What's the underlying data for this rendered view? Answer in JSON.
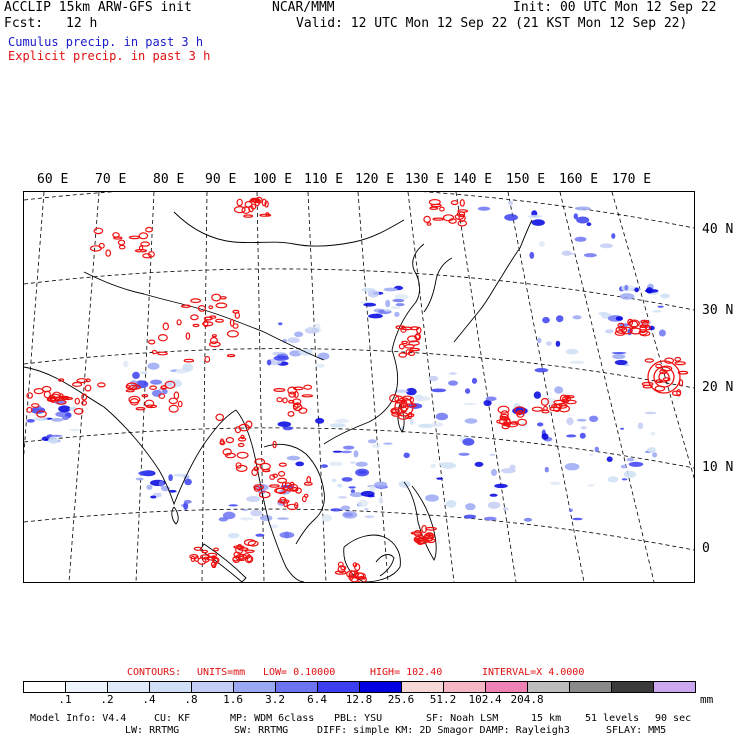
{
  "header": {
    "title": "ACCLIP 15km ARW-GFS init",
    "org": "NCAR/MMM",
    "init": "Init: 00 UTC Mon 12 Sep 22",
    "fcst_label": "Fcst:",
    "fcst_value": "12 h",
    "valid": "Valid: 12 UTC Mon 12 Sep 22 (21 KST Mon 12 Sep 22)",
    "legend_cumulus": "Cumulus precip. in past 3 h",
    "legend_explicit": "Explicit precip. in past 3 h"
  },
  "map": {
    "lon_labels": [
      "60 E",
      "70 E",
      "80 E",
      "90 E",
      "100 E",
      "110 E",
      "120 E",
      "130 E",
      "140 E",
      "150 E",
      "160 E",
      "170 E"
    ],
    "lat_labels": [
      "40 N",
      "30 N",
      "20 N",
      "10 N",
      "0"
    ],
    "colors": {
      "cumulus": "#2a3fe8",
      "explicit": "#ee1111",
      "coast": "#000000"
    }
  },
  "contours": {
    "label": "CONTOURS:",
    "units": "UNITS=mm",
    "low": "LOW= 0.10000",
    "high": "HIGH= 102.40",
    "interval": "INTERVAL=X 4.0000"
  },
  "colorbar": {
    "colors": [
      "#ffffff",
      "#eef4fb",
      "#dfe9f7",
      "#cfdff6",
      "#c4cdf5",
      "#9ba8f4",
      "#6d74f2",
      "#3b3ff0",
      "#0000e0",
      "#f7d8d8",
      "#f6b6c6",
      "#ee82b4",
      "#bdbdbd",
      "#8a8a8a",
      "#3a3a3a",
      "#cba8f0"
    ],
    "labels": [
      ".1",
      ".2",
      ".4",
      ".8",
      "1.6",
      "3.2",
      "6.4",
      "12.8",
      "25.6",
      "51.2",
      "102.4",
      "204.8"
    ],
    "unit": "mm"
  },
  "footer": {
    "line1": {
      "model": "Model Info: V4.4",
      "cu": "CU: KF",
      "mp": "MP: WDM 6class",
      "pbl": "PBL: YSU",
      "sf": "SF: Noah LSM",
      "res": "15 km",
      "levels": "51 levels",
      "dt": "90 sec"
    },
    "line2": {
      "lw": "LW: RRTMG",
      "sw": "SW: RRTMG",
      "diff": "DIFF: simple KM: 2D Smagor DAMP: Rayleigh3",
      "sflay": "SFLAY: MM5"
    }
  }
}
